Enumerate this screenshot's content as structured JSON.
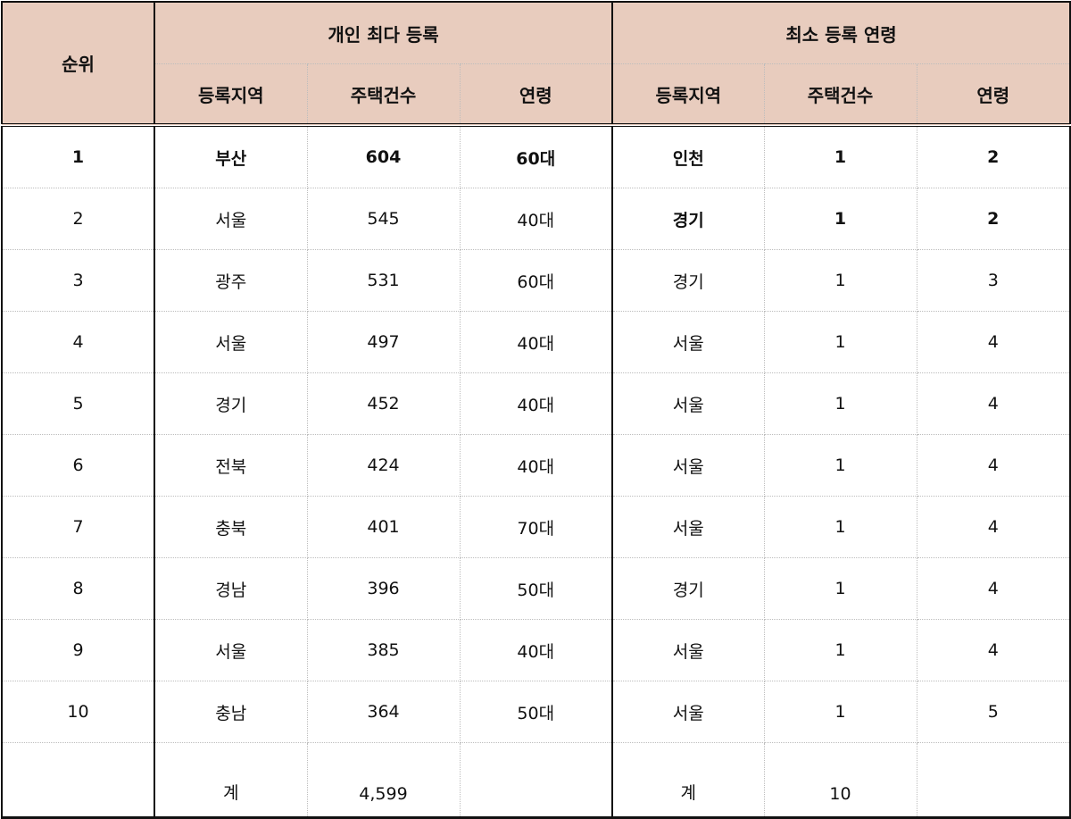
{
  "header": {
    "rank": "순위",
    "group_left": "개인 최다 등록",
    "group_right": "최소 등록 연령",
    "columns": [
      "등록지역",
      "주택건수",
      "연령",
      "등록지역",
      "주택건수",
      "연령"
    ]
  },
  "colors": {
    "header_bg": "#e8ccbe",
    "border": "#111111"
  },
  "rows": [
    {
      "rank": "1",
      "l_region": "부산",
      "l_count": "604",
      "l_age": "60대",
      "r_region": "인천",
      "r_count": "1",
      "r_age": "2"
    },
    {
      "rank": "2",
      "l_region": "서울",
      "l_count": "545",
      "l_age": "40대",
      "r_region": "경기",
      "r_count": "1",
      "r_age": "2"
    },
    {
      "rank": "3",
      "l_region": "광주",
      "l_count": "531",
      "l_age": "60대",
      "r_region": "경기",
      "r_count": "1",
      "r_age": "3"
    },
    {
      "rank": "4",
      "l_region": "서울",
      "l_count": "497",
      "l_age": "40대",
      "r_region": "서울",
      "r_count": "1",
      "r_age": "4"
    },
    {
      "rank": "5",
      "l_region": "경기",
      "l_count": "452",
      "l_age": "40대",
      "r_region": "서울",
      "r_count": "1",
      "r_age": "4"
    },
    {
      "rank": "6",
      "l_region": "전북",
      "l_count": "424",
      "l_age": "40대",
      "r_region": "서울",
      "r_count": "1",
      "r_age": "4"
    },
    {
      "rank": "7",
      "l_region": "충북",
      "l_count": "401",
      "l_age": "70대",
      "r_region": "서울",
      "r_count": "1",
      "r_age": "4"
    },
    {
      "rank": "8",
      "l_region": "경남",
      "l_count": "396",
      "l_age": "50대",
      "r_region": "경기",
      "r_count": "1",
      "r_age": "4"
    },
    {
      "rank": "9",
      "l_region": "서울",
      "l_count": "385",
      "l_age": "40대",
      "r_region": "서울",
      "r_count": "1",
      "r_age": "4"
    },
    {
      "rank": "10",
      "l_region": "충남",
      "l_count": "364",
      "l_age": "50대",
      "r_region": "서울",
      "r_count": "1",
      "r_age": "5"
    }
  ],
  "totals": {
    "label_left": "계",
    "count_left": "4,599",
    "label_right": "계",
    "count_right": "10"
  }
}
